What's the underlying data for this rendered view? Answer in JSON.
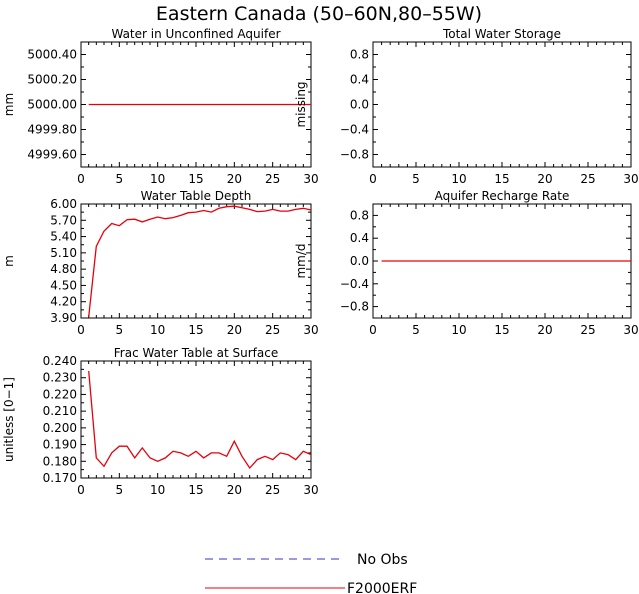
{
  "figure_title": "Eastern Canada (50–60N,80–55W)",
  "legend": [
    {
      "label": "No Obs",
      "color": "#3333cc",
      "style": "dashed"
    },
    {
      "label": "F2000ERF",
      "color": "#e8000b",
      "style": "solid"
    }
  ],
  "chart_data": [
    {
      "id": "p1",
      "type": "line",
      "title": "Water in Unconfined Aquifer",
      "ylabel": "mm",
      "xlim": [
        0,
        30
      ],
      "xticks": [
        "0",
        "5",
        "10",
        "15",
        "20",
        "25",
        "30"
      ],
      "ylim": [
        4999.5,
        5000.5
      ],
      "yticks": [
        {
          "v": 5000.4,
          "label": "5000.40"
        },
        {
          "v": 5000.2,
          "label": "5000.20"
        },
        {
          "v": 5000.0,
          "label": "5000.00"
        },
        {
          "v": 4999.8,
          "label": "4999.80"
        },
        {
          "v": 4999.6,
          "label": "4999.60"
        }
      ],
      "series": [
        {
          "color": "#e8000b",
          "x": [
            1,
            30
          ],
          "y": [
            5000.0,
            5000.0
          ]
        }
      ]
    },
    {
      "id": "p2",
      "type": "line",
      "title": "Total Water Storage",
      "ylabel": "missing",
      "xlim": [
        0,
        30
      ],
      "xticks": [
        "0",
        "5",
        "10",
        "15",
        "20",
        "25",
        "30"
      ],
      "ylim": [
        -1,
        1
      ],
      "yticks": [
        {
          "v": 0.8,
          "label": "0.8"
        },
        {
          "v": 0.4,
          "label": "0.4"
        },
        {
          "v": 0.0,
          "label": "0.0"
        },
        {
          "v": -0.4,
          "label": "−0.4"
        },
        {
          "v": -0.8,
          "label": "−0.8"
        }
      ],
      "series": []
    },
    {
      "id": "p3",
      "type": "line",
      "title": "Water Table Depth",
      "ylabel": "m",
      "xlim": [
        0,
        30
      ],
      "xticks": [
        "0",
        "5",
        "10",
        "15",
        "20",
        "25",
        "30"
      ],
      "ylim": [
        3.9,
        6.0
      ],
      "yticks": [
        {
          "v": 6.0,
          "label": "6.00"
        },
        {
          "v": 5.7,
          "label": "5.70"
        },
        {
          "v": 5.4,
          "label": "5.40"
        },
        {
          "v": 5.1,
          "label": "5.10"
        },
        {
          "v": 4.8,
          "label": "4.80"
        },
        {
          "v": 4.5,
          "label": "4.50"
        },
        {
          "v": 4.2,
          "label": "4.20"
        },
        {
          "v": 3.9,
          "label": "3.90"
        }
      ],
      "series": [
        {
          "color": "#e8000b",
          "x": [
            1,
            2,
            3,
            4,
            5,
            6,
            7,
            8,
            9,
            10,
            11,
            12,
            13,
            14,
            15,
            16,
            17,
            18,
            19,
            20,
            21,
            22,
            23,
            24,
            25,
            26,
            27,
            28,
            29,
            30
          ],
          "y": [
            3.92,
            5.22,
            5.5,
            5.64,
            5.6,
            5.71,
            5.72,
            5.67,
            5.72,
            5.76,
            5.73,
            5.75,
            5.79,
            5.84,
            5.85,
            5.88,
            5.85,
            5.92,
            5.95,
            5.96,
            5.93,
            5.9,
            5.86,
            5.87,
            5.9,
            5.87,
            5.87,
            5.9,
            5.92,
            5.89
          ]
        }
      ]
    },
    {
      "id": "p4",
      "type": "line",
      "title": "Aquifer Recharge Rate",
      "ylabel": "mm/d",
      "xlim": [
        0,
        30
      ],
      "xticks": [
        "0",
        "5",
        "10",
        "15",
        "20",
        "25",
        "30"
      ],
      "ylim": [
        -1,
        1
      ],
      "yticks": [
        {
          "v": 0.8,
          "label": "0.8"
        },
        {
          "v": 0.4,
          "label": "0.4"
        },
        {
          "v": 0.0,
          "label": "0.0"
        },
        {
          "v": -0.4,
          "label": "−0.4"
        },
        {
          "v": -0.8,
          "label": "−0.8"
        }
      ],
      "series": [
        {
          "color": "#e8000b",
          "x": [
            1,
            30
          ],
          "y": [
            0.0,
            0.0
          ]
        }
      ]
    },
    {
      "id": "p5",
      "type": "line",
      "title": "Frac Water Table at Surface",
      "ylabel": "unitless [0−1]",
      "xlim": [
        0,
        30
      ],
      "xticks": [
        "0",
        "5",
        "10",
        "15",
        "20",
        "25",
        "30"
      ],
      "ylim": [
        0.17,
        0.24
      ],
      "yticks": [
        {
          "v": 0.24,
          "label": "0.240"
        },
        {
          "v": 0.23,
          "label": "0.230"
        },
        {
          "v": 0.22,
          "label": "0.220"
        },
        {
          "v": 0.21,
          "label": "0.210"
        },
        {
          "v": 0.2,
          "label": "0.200"
        },
        {
          "v": 0.19,
          "label": "0.190"
        },
        {
          "v": 0.18,
          "label": "0.180"
        },
        {
          "v": 0.17,
          "label": "0.170"
        }
      ],
      "series": [
        {
          "color": "#e8000b",
          "x": [
            1,
            2,
            3,
            4,
            5,
            6,
            7,
            8,
            9,
            10,
            11,
            12,
            13,
            14,
            15,
            16,
            17,
            18,
            19,
            20,
            21,
            22,
            23,
            24,
            25,
            26,
            27,
            28,
            29,
            30
          ],
          "y": [
            0.234,
            0.182,
            0.177,
            0.185,
            0.189,
            0.189,
            0.182,
            0.188,
            0.182,
            0.18,
            0.182,
            0.186,
            0.185,
            0.183,
            0.186,
            0.182,
            0.185,
            0.185,
            0.183,
            0.192,
            0.183,
            0.176,
            0.181,
            0.183,
            0.181,
            0.185,
            0.184,
            0.181,
            0.186,
            0.184
          ]
        }
      ]
    }
  ]
}
